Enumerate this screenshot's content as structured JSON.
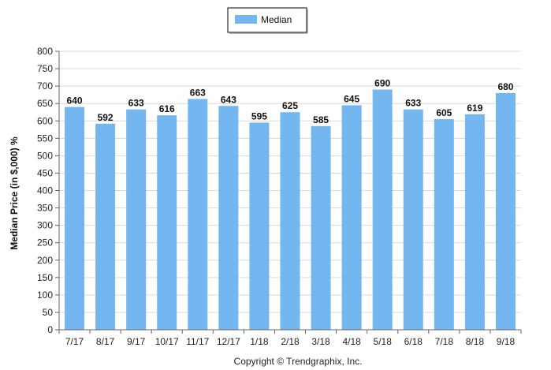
{
  "chart_data": {
    "type": "bar",
    "categories": [
      "7/17",
      "8/17",
      "9/17",
      "10/17",
      "11/17",
      "12/17",
      "1/18",
      "2/18",
      "3/18",
      "4/18",
      "5/18",
      "6/18",
      "7/18",
      "8/18",
      "9/18"
    ],
    "series": [
      {
        "name": "Median",
        "values": [
          640,
          592,
          633,
          616,
          663,
          643,
          595,
          625,
          585,
          645,
          690,
          633,
          605,
          619,
          680
        ],
        "color": "#74b7f0"
      }
    ],
    "data_labels": [
      "640",
      "592",
      "633",
      "616",
      "663",
      "643",
      "595",
      "625",
      "585",
      "645",
      "690",
      "633",
      "605",
      "619",
      "680"
    ],
    "ylabel": "Median Price (in $,000) %",
    "xlabel": "",
    "ylim": [
      0,
      800
    ],
    "yticks": [
      0,
      50,
      100,
      150,
      200,
      250,
      300,
      350,
      400,
      450,
      500,
      550,
      600,
      650,
      700,
      750,
      800
    ],
    "grid": true,
    "legend_position": "top-center"
  },
  "footer": {
    "copyright": "Copyright © Trendgraphix, Inc."
  }
}
